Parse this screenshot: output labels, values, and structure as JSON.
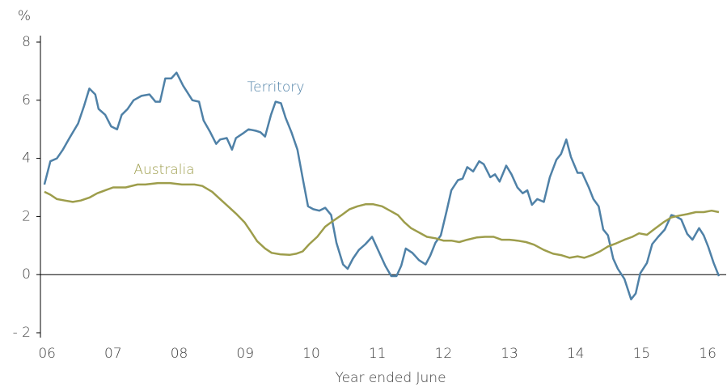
{
  "chart_data": {
    "type": "line",
    "y_unit": "%",
    "x_label": "Year ended June",
    "xlim": [
      5.9,
      16.28
    ],
    "xticks": [
      {
        "value": 6,
        "label": "06"
      },
      {
        "value": 7,
        "label": "07"
      },
      {
        "value": 8,
        "label": "08"
      },
      {
        "value": 9,
        "label": "09"
      },
      {
        "value": 10,
        "label": "10"
      },
      {
        "value": 11,
        "label": "11"
      },
      {
        "value": 12,
        "label": "12"
      },
      {
        "value": 13,
        "label": "13"
      },
      {
        "value": 14,
        "label": "14"
      },
      {
        "value": 15,
        "label": "15"
      },
      {
        "value": 16,
        "label": "16"
      }
    ],
    "ylim": [
      -2,
      8
    ],
    "yticks": [
      8,
      6,
      4,
      2,
      0,
      {
        "value": -2,
        "label": "- 2"
      }
    ],
    "series": [
      {
        "name": "Territory",
        "color": "#4f81a7",
        "x": [
          5.96,
          6.05,
          6.15,
          6.24,
          6.34,
          6.47,
          6.56,
          6.64,
          6.73,
          6.78,
          6.88,
          6.97,
          7.06,
          7.13,
          7.22,
          7.31,
          7.43,
          7.55,
          7.64,
          7.71,
          7.79,
          7.88,
          7.96,
          8.06,
          8.2,
          8.3,
          8.37,
          8.47,
          8.56,
          8.62,
          8.72,
          8.8,
          8.86,
          8.96,
          9.05,
          9.16,
          9.23,
          9.3,
          9.39,
          9.46,
          9.54,
          9.61,
          9.7,
          9.79,
          9.88,
          9.95,
          10.03,
          10.12,
          10.21,
          10.3,
          10.38,
          10.48,
          10.55,
          10.63,
          10.72,
          10.82,
          10.92,
          11.02,
          11.12,
          11.21,
          11.29,
          11.36,
          11.43,
          11.53,
          11.63,
          11.73,
          11.8,
          11.88,
          11.96,
          12.05,
          12.12,
          12.22,
          12.29,
          12.36,
          12.45,
          12.54,
          12.61,
          12.71,
          12.78,
          12.85,
          12.95,
          13.03,
          13.12,
          13.2,
          13.27,
          13.34,
          13.42,
          13.52,
          13.61,
          13.71,
          13.78,
          13.86,
          13.93,
          14.03,
          14.1,
          14.2,
          14.27,
          14.35,
          14.42,
          14.49,
          14.57,
          14.64,
          14.74,
          14.84,
          14.91,
          14.98,
          15.08,
          15.16,
          15.25,
          15.35,
          15.45,
          15.52,
          15.6,
          15.69,
          15.77,
          15.87,
          15.94,
          16.01,
          16.09,
          16.17
        ],
        "values": [
          3.1,
          3.9,
          4.0,
          4.3,
          4.7,
          5.2,
          5.8,
          6.4,
          6.2,
          5.7,
          5.5,
          5.1,
          5.0,
          5.5,
          5.7,
          6.0,
          6.15,
          6.2,
          5.95,
          5.95,
          6.75,
          6.75,
          6.95,
          6.5,
          6.0,
          5.95,
          5.3,
          4.9,
          4.5,
          4.65,
          4.7,
          4.3,
          4.7,
          4.85,
          5.0,
          4.95,
          4.9,
          4.75,
          5.5,
          5.95,
          5.9,
          5.4,
          4.9,
          4.3,
          3.2,
          2.35,
          2.25,
          2.2,
          2.3,
          2.05,
          1.1,
          0.35,
          0.2,
          0.55,
          0.85,
          1.05,
          1.3,
          0.8,
          0.3,
          -0.05,
          -0.05,
          0.3,
          0.9,
          0.75,
          0.5,
          0.35,
          0.65,
          1.1,
          1.35,
          2.2,
          2.9,
          3.25,
          3.3,
          3.7,
          3.55,
          3.9,
          3.8,
          3.35,
          3.45,
          3.2,
          3.75,
          3.45,
          3.0,
          2.8,
          2.9,
          2.4,
          2.6,
          2.5,
          3.35,
          3.95,
          4.15,
          4.65,
          4.05,
          3.5,
          3.5,
          3.0,
          2.6,
          2.35,
          1.55,
          1.35,
          0.55,
          0.2,
          -0.15,
          -0.85,
          -0.65,
          0.05,
          0.4,
          1.05,
          1.3,
          1.55,
          2.05,
          2.0,
          1.9,
          1.4,
          1.2,
          1.6,
          1.35,
          0.95,
          0.4,
          -0.05
        ]
      },
      {
        "name": "Australia",
        "color": "#9d9d4b",
        "x": [
          5.96,
          6.05,
          6.15,
          6.27,
          6.39,
          6.51,
          6.64,
          6.76,
          6.88,
          7.0,
          7.19,
          7.37,
          7.49,
          7.68,
          7.86,
          8.04,
          8.23,
          8.35,
          8.5,
          8.62,
          8.74,
          8.86,
          8.99,
          9.08,
          9.18,
          9.3,
          9.4,
          9.53,
          9.67,
          9.77,
          9.87,
          9.97,
          10.09,
          10.21,
          10.33,
          10.46,
          10.58,
          10.7,
          10.82,
          10.94,
          11.07,
          11.19,
          11.31,
          11.41,
          11.51,
          11.63,
          11.75,
          11.88,
          12.0,
          12.12,
          12.24,
          12.36,
          12.51,
          12.63,
          12.76,
          12.88,
          13.0,
          13.12,
          13.25,
          13.37,
          13.52,
          13.66,
          13.78,
          13.91,
          14.03,
          14.13,
          14.25,
          14.37,
          14.49,
          14.62,
          14.74,
          14.86,
          14.96,
          15.08,
          15.2,
          15.33,
          15.45,
          15.57,
          15.69,
          15.82,
          15.94,
          16.06,
          16.17
        ],
        "values": [
          2.85,
          2.75,
          2.6,
          2.55,
          2.5,
          2.55,
          2.65,
          2.8,
          2.9,
          3.0,
          3.0,
          3.1,
          3.1,
          3.15,
          3.15,
          3.1,
          3.1,
          3.05,
          2.85,
          2.6,
          2.35,
          2.1,
          1.8,
          1.5,
          1.15,
          0.9,
          0.75,
          0.7,
          0.68,
          0.72,
          0.8,
          1.05,
          1.3,
          1.65,
          1.85,
          2.05,
          2.25,
          2.35,
          2.42,
          2.42,
          2.35,
          2.2,
          2.05,
          1.8,
          1.6,
          1.45,
          1.3,
          1.25,
          1.17,
          1.17,
          1.12,
          1.2,
          1.28,
          1.3,
          1.3,
          1.2,
          1.2,
          1.17,
          1.12,
          1.03,
          0.85,
          0.72,
          0.67,
          0.58,
          0.63,
          0.58,
          0.67,
          0.8,
          0.97,
          1.08,
          1.2,
          1.3,
          1.42,
          1.37,
          1.58,
          1.8,
          1.97,
          2.03,
          2.08,
          2.15,
          2.15,
          2.2,
          2.15
        ]
      }
    ]
  }
}
